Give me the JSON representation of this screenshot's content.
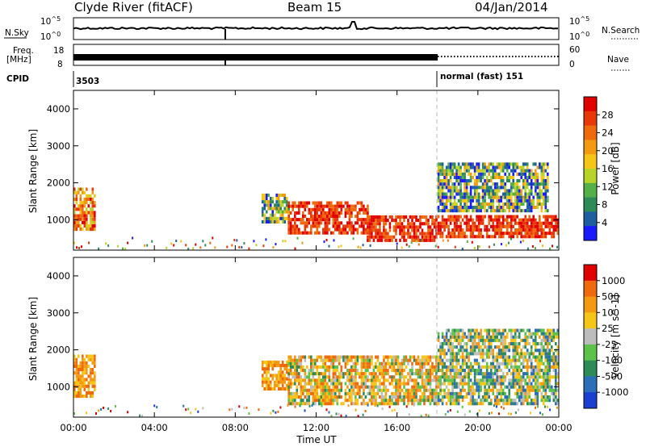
{
  "header": {
    "site": "Clyde River (fitACF)",
    "beam": "Beam 15",
    "date": "04/Jan/2014"
  },
  "summary_panel": {
    "nsky_label": "N.Sky",
    "nsearch_label": "N.Search",
    "power_ticks": [
      "10^5",
      "10^0"
    ],
    "freq_label": "Freq.",
    "freq_unit": "[MHz]",
    "freq_ticks": [
      "18",
      "8"
    ],
    "nave_label": "Nave",
    "nave_ticks": [
      "60",
      "0"
    ],
    "cpid_label": "CPID",
    "cpid_first": "3503",
    "cpid_second": "normal (fast) 151"
  },
  "chart_data": [
    {
      "type": "heatmap",
      "name": "Power",
      "xlabel": "",
      "ylabel": "Slant Range [km]",
      "ylim": [
        180,
        4500
      ],
      "yticks": [
        "1000",
        "2000",
        "3000",
        "4000"
      ],
      "colorbar": {
        "label": "Power [dB]",
        "ticks": [
          "4",
          "8",
          "12",
          "16",
          "20",
          "24",
          "28"
        ],
        "colors": [
          "#1a1aff",
          "#1f5fa0",
          "#2e8b57",
          "#55b04a",
          "#b8d42a",
          "#f5c518",
          "#f39a12",
          "#ee6a0c",
          "#e8380a",
          "#e00000"
        ]
      },
      "regions": [
        {
          "t": [
            0.0,
            1.0
          ],
          "r": [
            700,
            1800
          ],
          "level": "mid-high"
        },
        {
          "t": [
            9.3,
            10.6
          ],
          "r": [
            900,
            1700
          ],
          "level": "mid"
        },
        {
          "t": [
            10.6,
            14.5
          ],
          "r": [
            600,
            1500
          ],
          "level": "high"
        },
        {
          "t": [
            14.5,
            18.0
          ],
          "r": [
            400,
            1100
          ],
          "level": "high"
        },
        {
          "t": [
            18.0,
            24.0
          ],
          "r": [
            500,
            1100
          ],
          "level": "high"
        },
        {
          "t": [
            18.0,
            23.5
          ],
          "r": [
            1200,
            2500
          ],
          "level": "mid"
        }
      ]
    },
    {
      "type": "heatmap",
      "name": "Velocity",
      "xlabel": "Time UT",
      "ylabel": "Slant Range [km]",
      "ylim": [
        180,
        4500
      ],
      "yticks": [
        "1000",
        "2000",
        "3000",
        "4000"
      ],
      "xticks": [
        "00:00",
        "04:00",
        "08:00",
        "12:00",
        "16:00",
        "20:00",
        "00:00"
      ],
      "colorbar": {
        "label": "Velocity [m s^-1]",
        "ticks": [
          "1000",
          "500",
          "100",
          "25",
          "-25",
          "-100",
          "-500",
          "-1000"
        ],
        "colors": [
          "#1a3fd1",
          "#2b6fb8",
          "#2e8b57",
          "#5cc24a",
          "#bdbdbd",
          "#f5c518",
          "#f39a12",
          "#ee6a0c",
          "#e00000"
        ]
      },
      "regions": [
        {
          "t": [
            0.0,
            1.0
          ],
          "r": [
            700,
            1800
          ],
          "level": "orange"
        },
        {
          "t": [
            9.3,
            10.6
          ],
          "r": [
            900,
            1700
          ],
          "level": "orange"
        },
        {
          "t": [
            10.6,
            18.0
          ],
          "r": [
            500,
            1800
          ],
          "level": "orange-green"
        },
        {
          "t": [
            18.0,
            24.0
          ],
          "r": [
            500,
            2500
          ],
          "level": "green-grey"
        }
      ]
    }
  ]
}
